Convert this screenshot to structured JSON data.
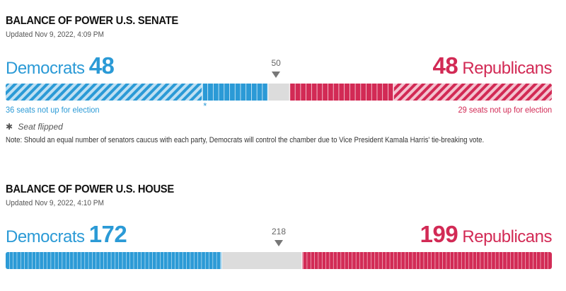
{
  "colors": {
    "dem": "#2b9ad6",
    "rep": "#d22a55",
    "undecided": "#dcdcdc",
    "dem_stripe_bg": "#bfe0f3",
    "rep_stripe_bg": "#f3c3d0"
  },
  "chart_data": [
    {
      "type": "bar",
      "title": "BALANCE OF POWER U.S. SENATE",
      "updated": "Updated Nov 9, 2022, 4:09 PM",
      "total": 100,
      "majority_marker": 50,
      "majority_marker_label": "50",
      "dem": {
        "label": "Democrats",
        "seats": 48,
        "seats_label": "48",
        "not_up": 36,
        "not_up_label": "36 seats not up for election"
      },
      "rep": {
        "label": "Republicans",
        "seats": 48,
        "seats_label": "48",
        "not_up": 29,
        "not_up_label": "29 seats not up for election"
      },
      "flipped_seats": [
        {
          "party": "dem",
          "seat_index": 36
        }
      ],
      "legend_star": "✱",
      "legend_text": "Seat flipped",
      "note": "Note: Should an equal number of senators caucus with each party, Democrats will control the chamber due to Vice President Kamala Harris' tie-breaking vote."
    },
    {
      "type": "bar",
      "title": "BALANCE OF POWER U.S. HOUSE",
      "updated": "Updated Nov 9, 2022, 4:10 PM",
      "total": 435,
      "majority_marker": 218,
      "majority_marker_label": "218",
      "dem": {
        "label": "Democrats",
        "seats": 172,
        "seats_label": "172",
        "not_up": 0
      },
      "rep": {
        "label": "Republicans",
        "seats": 199,
        "seats_label": "199",
        "not_up": 0
      }
    }
  ]
}
